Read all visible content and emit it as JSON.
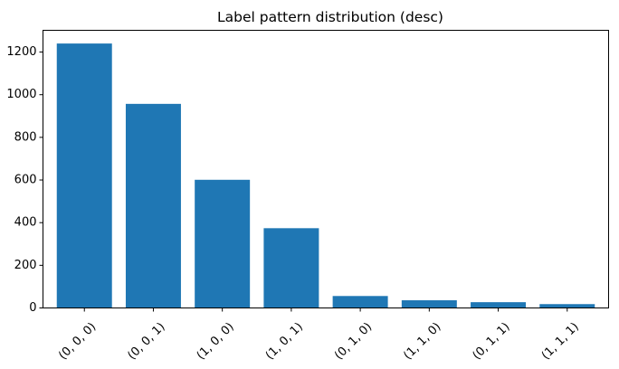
{
  "chart_data": {
    "type": "bar",
    "title": "Label pattern distribution (desc)",
    "xlabel": "",
    "ylabel": "",
    "categories": [
      "(0, 0, 0)",
      "(0, 0, 1)",
      "(1, 0, 0)",
      "(1, 0, 1)",
      "(0, 1, 0)",
      "(1, 1, 0)",
      "(0, 1, 1)",
      "(1, 1, 1)"
    ],
    "values": [
      1240,
      957,
      601,
      374,
      56,
      36,
      27,
      18
    ],
    "ylim": [
      0,
      1302
    ],
    "yticks": [
      0,
      200,
      400,
      600,
      800,
      1000,
      1200
    ],
    "bar_color": "#1f77b4",
    "grid": false,
    "legend": "none"
  }
}
